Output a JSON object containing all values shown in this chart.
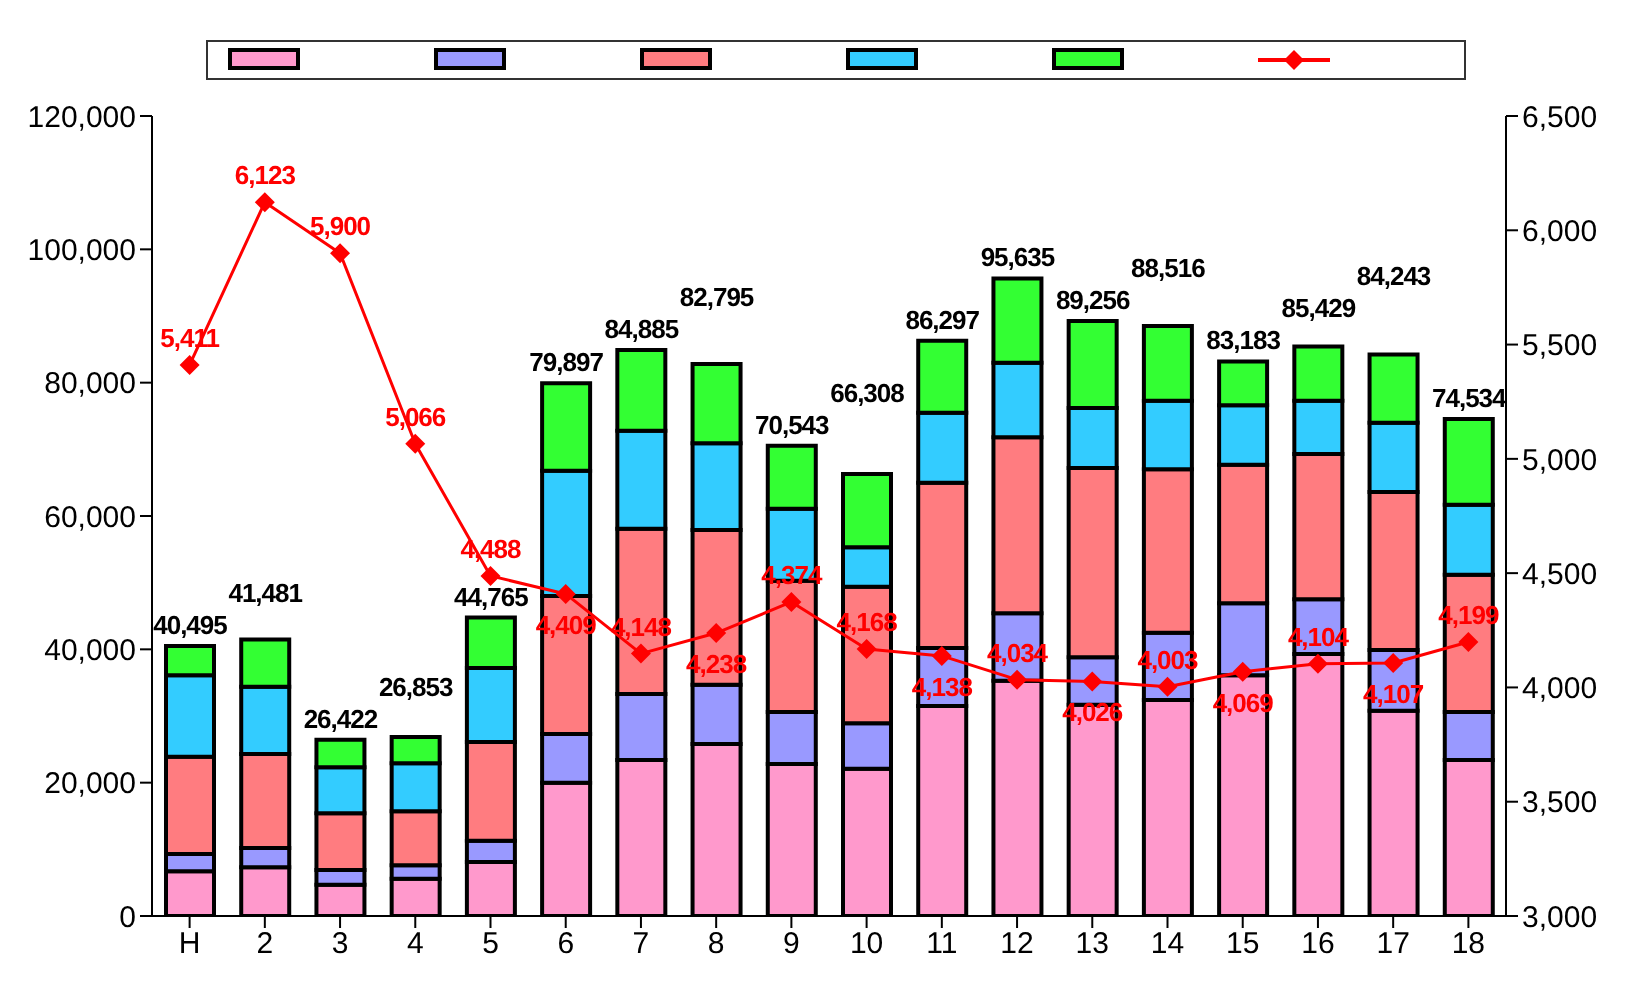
{
  "chart_data": {
    "type": "bar",
    "stacked": true,
    "categories": [
      "H",
      "2",
      "3",
      "4",
      "5",
      "6",
      "7",
      "8",
      "9",
      "10",
      "11",
      "12",
      "13",
      "14",
      "15",
      "16",
      "17",
      "18"
    ],
    "series": [
      {
        "color": "#ff99cc",
        "values": [
          6700,
          7300,
          4700,
          5600,
          8100,
          20000,
          23400,
          25800,
          22800,
          22100,
          31500,
          35300,
          31700,
          32400,
          36100,
          39300,
          30800,
          23400
        ]
      },
      {
        "color": "#9999ff",
        "values": [
          2600,
          2900,
          2200,
          2000,
          3200,
          7300,
          9900,
          8900,
          7800,
          6800,
          8700,
          10100,
          7100,
          10100,
          10800,
          8200,
          9100,
          7200
        ]
      },
      {
        "color": "#ff7c80",
        "values": [
          14600,
          14100,
          8500,
          8100,
          14800,
          20700,
          24800,
          23200,
          19700,
          20500,
          24800,
          26400,
          28400,
          24500,
          20800,
          21800,
          23700,
          20600
        ]
      },
      {
        "color": "#33ccff",
        "values": [
          12200,
          10100,
          6900,
          7200,
          11100,
          18800,
          14700,
          13000,
          10800,
          5900,
          10500,
          11200,
          9000,
          10300,
          8900,
          8000,
          10400,
          10500
        ]
      },
      {
        "color": "#33ff33",
        "values": [
          4395,
          7081,
          4122,
          3953,
          7565,
          13097,
          12085,
          11895,
          9443,
          11008,
          10797,
          12635,
          13056,
          11216,
          6583,
          8129,
          10243,
          12834
        ]
      },
      {
        "type": "line",
        "axis": "y2",
        "color": "#ff0000",
        "marker": "diamond",
        "values": [
          5411,
          6123,
          5900,
          5066,
          4488,
          4409,
          4148,
          4238,
          4374,
          4168,
          4138,
          4034,
          4026,
          4003,
          4069,
          4104,
          4107,
          4199
        ],
        "value_labels": [
          "5,411",
          "6,123",
          "5,900",
          "5,066",
          "4,488",
          "4,409",
          "4,148",
          "4,238",
          "4,374",
          "4,168",
          "4,138",
          "4,034",
          "4,026",
          "4,003",
          "4,069",
          "4,104",
          "4,107",
          "4,199"
        ]
      }
    ],
    "totals": [
      "40,495",
      "41,481",
      "26,422",
      "26,853",
      "44,765",
      "79,897",
      "84,885",
      "82,795",
      "70,543",
      "66,308",
      "86,297",
      "95,635",
      "89,256",
      "88,516",
      "83,183",
      "85,429",
      "84,243",
      "74,534"
    ],
    "ylim": [
      0,
      120000
    ],
    "yticks": [
      {
        "value": 0,
        "label": "0"
      },
      {
        "value": 20000,
        "label": "20,000"
      },
      {
        "value": 40000,
        "label": "40,000"
      },
      {
        "value": 60000,
        "label": "60,000"
      },
      {
        "value": 80000,
        "label": "80,000"
      },
      {
        "value": 100000,
        "label": "100,000"
      },
      {
        "value": 120000,
        "label": "120,000"
      }
    ],
    "y2lim": [
      3000,
      6500
    ],
    "y2ticks": [
      {
        "value": 3000,
        "label": "3,000"
      },
      {
        "value": 3500,
        "label": "3,500"
      },
      {
        "value": 4000,
        "label": "4,000"
      },
      {
        "value": 4500,
        "label": "4,500"
      },
      {
        "value": 5000,
        "label": "5,000"
      },
      {
        "value": 5500,
        "label": "5,500"
      },
      {
        "value": 6000,
        "label": "6,000"
      },
      {
        "value": 6500,
        "label": "6,500"
      }
    ],
    "grid": false
  }
}
